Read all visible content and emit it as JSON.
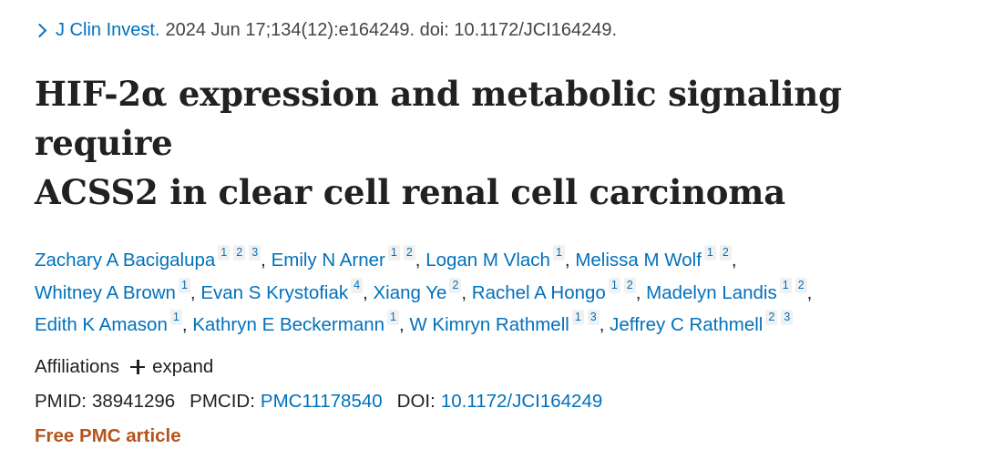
{
  "citation": {
    "journal": "J Clin Invest.",
    "details": "2024 Jun 17;134(12):e164249. doi: 10.1172/JCI164249."
  },
  "title": {
    "line1": "HIF-2α expression and metabolic signaling require",
    "line2": "ACSS2 in clear cell renal cell carcinoma"
  },
  "authors": [
    {
      "name": "Zachary A Bacigalupa",
      "affs": [
        "1",
        "2",
        "3"
      ]
    },
    {
      "name": "Emily N Arner",
      "affs": [
        "1",
        "2"
      ]
    },
    {
      "name": "Logan M Vlach",
      "affs": [
        "1"
      ]
    },
    {
      "name": "Melissa M Wolf",
      "affs": [
        "1",
        "2"
      ]
    },
    {
      "name": "Whitney A Brown",
      "affs": [
        "1"
      ]
    },
    {
      "name": "Evan S Krystofiak",
      "affs": [
        "4"
      ]
    },
    {
      "name": "Xiang Ye",
      "affs": [
        "2"
      ]
    },
    {
      "name": "Rachel A Hongo",
      "affs": [
        "1",
        "2"
      ]
    },
    {
      "name": "Madelyn Landis",
      "affs": [
        "1",
        "2"
      ]
    },
    {
      "name": "Edith K Amason",
      "affs": [
        "1"
      ]
    },
    {
      "name": "Kathryn E Beckermann",
      "affs": [
        "1"
      ]
    },
    {
      "name": "W Kimryn Rathmell",
      "affs": [
        "1",
        "3"
      ]
    },
    {
      "name": "Jeffrey C Rathmell",
      "affs": [
        "2",
        "3"
      ]
    }
  ],
  "affiliations": {
    "label": "Affiliations",
    "expand_label": "expand",
    "expand_icon": "plus-icon"
  },
  "ids": {
    "pmid_label": "PMID:",
    "pmid": "38941296",
    "pmcid_label": "PMCID:",
    "pmcid": "PMC11178540",
    "doi_label": "DOI:",
    "doi": "10.1172/JCI164249"
  },
  "free_label": "Free PMC article",
  "colors": {
    "link": "#0071bc",
    "free_pmc": "#b5541b",
    "text": "#212121"
  }
}
